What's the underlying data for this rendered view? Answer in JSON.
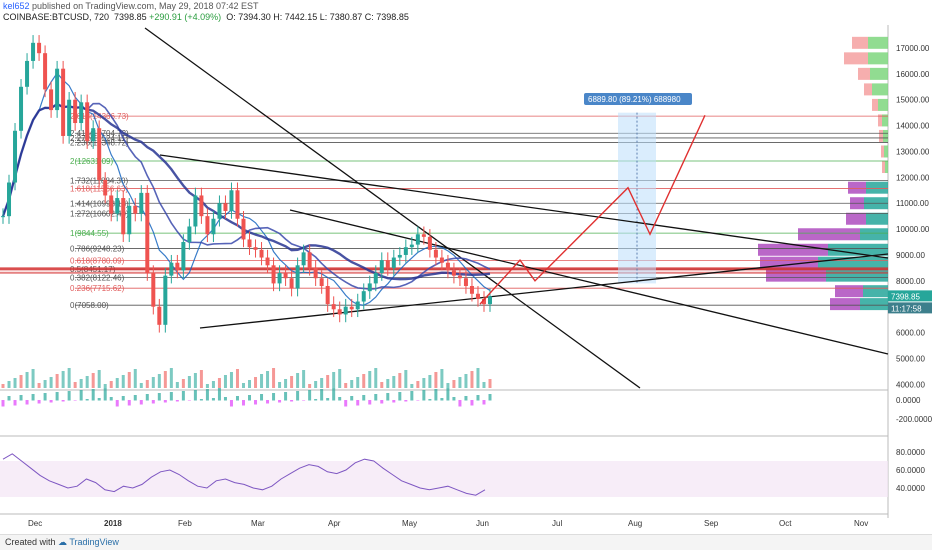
{
  "header": {
    "user": "kel652",
    "published": " published on TradingView.com, May 29, 2018 07:42 EST",
    "symbol": "COINBASE:BTCUSD, 720",
    "last": "7398.85",
    "change": "+290.91 (+4.09%)",
    "ohlc": "O: 7394.30  H: 7442.15  L: 7380.87  C: 7398.85"
  },
  "footer": {
    "published_with": "Created with",
    "brand": "TradingView"
  },
  "chart_data": {
    "type": "line",
    "x_labels": [
      "Dec",
      "2018",
      "Feb",
      "Mar",
      "Apr",
      "May",
      "Jun",
      "Jul",
      "Aug",
      "Sep",
      "Oct",
      "Nov"
    ],
    "price_axis": [
      "17000.00",
      "16000.00",
      "15000.00",
      "14000.00",
      "13000.00",
      "12000.00",
      "11000.00",
      "10000.00",
      "9000.00",
      "8000.00",
      "7000.00",
      "6000.00",
      "5000.00",
      "4000.00"
    ],
    "macd_axis": [
      "0.0000",
      "-200.0000"
    ],
    "rsi_axis": [
      "80.0000",
      "60.0000",
      "40.0000"
    ],
    "last_price": "7398.85",
    "countdown": "11:17:58",
    "measure": "6889.80 (89.21%) 688980",
    "fib_levels": [
      {
        "label": "2.618(14366.73)",
        "value": 14366.73,
        "color": "#e05c5c"
      },
      {
        "label": "2.414(13704.72)",
        "value": 13704.72,
        "color": "#555555"
      },
      {
        "label": "2.272(13524.11)",
        "value": 13524.11,
        "color": "#555555"
      },
      {
        "label": "2.236(13348.72)",
        "value": 13348.72,
        "color": "#555555"
      },
      {
        "label": "2(12631.09)",
        "value": 12631.09,
        "color": "#4caf50"
      },
      {
        "label": "1.732(11884.30)",
        "value": 11884.3,
        "color": "#555555"
      },
      {
        "label": "1.618(11566.63)",
        "value": 11566.63,
        "color": "#e05c5c"
      },
      {
        "label": "1.414(10998.18)",
        "value": 10998.18,
        "color": "#555555"
      },
      {
        "label": "1.272(10602.49)",
        "value": 10602.49,
        "color": "#555555"
      },
      {
        "label": "1(9844.55)",
        "value": 9844.55,
        "color": "#4caf50"
      },
      {
        "label": "0.786(9248.23)",
        "value": 9248.23,
        "color": "#555555"
      },
      {
        "label": "0.618(8780.09)",
        "value": 8780.09,
        "color": "#e05c5c"
      },
      {
        "label": "0.5(8451.17)",
        "value": 8451.17,
        "color": "#555555"
      },
      {
        "label": "0.382(8122.46)",
        "value": 8122.46,
        "color": "#555555"
      },
      {
        "label": "0.236(7715.62)",
        "value": 7715.62,
        "color": "#e05c5c"
      },
      {
        "label": "0(7058.00)",
        "value": 7058.0,
        "color": "#555555"
      }
    ],
    "price_series": {
      "name": "BTCUSD",
      "values": [
        10500,
        11800,
        13800,
        15500,
        16500,
        17200,
        16800,
        15400,
        14600,
        16200,
        13600,
        15000,
        14100,
        14900,
        13400,
        13900,
        11900,
        11300,
        10600,
        11200,
        9800,
        10900,
        10600,
        11400,
        8300,
        7000,
        6300,
        8200,
        8700,
        8400,
        9500,
        10100,
        11300,
        10500,
        9800,
        10400,
        11000,
        10700,
        11500,
        10400,
        9600,
        9300,
        9200,
        8900,
        8600,
        7900,
        8300,
        8100,
        7700,
        8600,
        9100,
        8500,
        8100,
        7800,
        7100,
        6900,
        6700,
        7000,
        6900,
        7200,
        7600,
        7900,
        8300,
        8800,
        8500,
        8900,
        9000,
        9300,
        9400,
        9800,
        9700,
        9200,
        8900,
        8700,
        8400,
        8200,
        8100,
        7800,
        7500,
        7300,
        7100,
        7400
      ]
    },
    "projection": {
      "name": "",
      "values": [
        7100,
        8800,
        8000,
        11600,
        9800,
        14400
      ]
    },
    "volume_profile_rows": [
      {
        "price": 17200,
        "buy": 20,
        "sell": 16
      },
      {
        "price": 16600,
        "buy": 20,
        "sell": 24
      },
      {
        "price": 16000,
        "buy": 18,
        "sell": 12
      },
      {
        "price": 15400,
        "buy": 16,
        "sell": 8
      },
      {
        "price": 14800,
        "buy": 10,
        "sell": 6
      },
      {
        "price": 14200,
        "buy": 6,
        "sell": 4
      },
      {
        "price": 13600,
        "buy": 5,
        "sell": 4
      },
      {
        "price": 13000,
        "buy": 4,
        "sell": 3
      },
      {
        "price": 12400,
        "buy": 3,
        "sell": 3
      },
      {
        "price": 11600,
        "buy": 22,
        "sell": 18
      },
      {
        "price": 11000,
        "buy": 24,
        "sell": 14
      },
      {
        "price": 10400,
        "buy": 22,
        "sell": 20
      },
      {
        "price": 9800,
        "buy": 28,
        "sell": 62
      },
      {
        "price": 9200,
        "buy": 60,
        "sell": 70
      },
      {
        "price": 8700,
        "buy": 70,
        "sell": 58
      },
      {
        "price": 8200,
        "buy": 62,
        "sell": 60
      },
      {
        "price": 7600,
        "buy": 25,
        "sell": 28
      },
      {
        "price": 7100,
        "buy": 28,
        "sell": 30
      }
    ],
    "rsi_values": [
      72,
      78,
      70,
      62,
      54,
      48,
      44,
      40,
      42,
      50,
      46,
      38,
      36,
      42,
      40,
      44,
      52,
      58,
      60,
      55,
      48,
      42,
      40,
      48,
      50,
      46,
      44,
      40,
      38,
      42,
      50,
      56,
      62,
      66,
      64,
      58,
      56,
      60,
      68,
      72,
      70,
      62,
      55,
      48,
      44,
      40,
      38,
      40,
      42,
      38,
      34,
      32,
      38
    ],
    "colors": {
      "up": "#26a69a",
      "down": "#ef5350",
      "fib_red": "#e05c5c",
      "fib_green": "#4caf50",
      "rsi": "#7e57c2",
      "projection": "#e03030",
      "profile_buy": "#26a69a",
      "profile_sell_hi": "#9c27b0"
    }
  }
}
